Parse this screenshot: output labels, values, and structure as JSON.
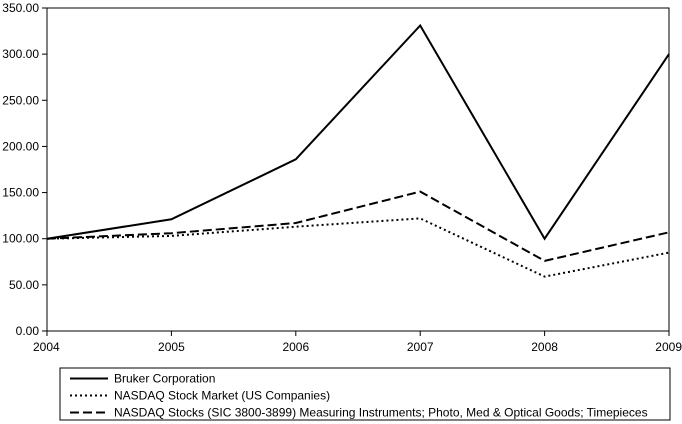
{
  "chart_data": {
    "type": "line",
    "title": "",
    "xlabel": "",
    "ylabel": "",
    "x": [
      "2004",
      "2005",
      "2006",
      "2007",
      "2008",
      "2009"
    ],
    "ylim": [
      0,
      350
    ],
    "y_ticks": [
      "0.00",
      "50.00",
      "100.00",
      "150.00",
      "200.00",
      "250.00",
      "300.00",
      "350.00"
    ],
    "grid": false,
    "legend_position": "bottom",
    "series": [
      {
        "name": "Bruker Corporation",
        "style": "solid",
        "color": "#000000",
        "values": [
          100,
          121,
          186,
          331,
          100,
          300
        ]
      },
      {
        "name": "NASDAQ Stock Market (US Companies)",
        "style": "dotted",
        "color": "#000000",
        "values": [
          100,
          103,
          113,
          122,
          59,
          85
        ]
      },
      {
        "name": "NASDAQ Stocks (SIC 3800-3899) Measuring Instruments; Photo, Med & Optical Goods; Timepieces",
        "style": "dashed",
        "color": "#000000",
        "values": [
          100,
          106,
          117,
          151,
          76,
          107
        ]
      }
    ]
  }
}
